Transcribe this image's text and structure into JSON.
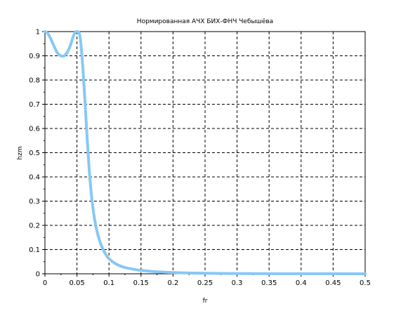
{
  "chart_data": {
    "type": "line",
    "title": "Нормированная АЧХ БИХ-ФНЧ Чебышёва",
    "xlabel": "fr",
    "ylabel": "hzm",
    "xlim": [
      0,
      0.5
    ],
    "ylim": [
      0,
      1
    ],
    "grid": true,
    "x_ticks": [
      "0",
      "0.05",
      "0.1",
      "0.15",
      "0.2",
      "0.25",
      "0.3",
      "0.35",
      "0.4",
      "0.45",
      "0.5"
    ],
    "y_ticks": [
      "0",
      "0.1",
      "0.2",
      "0.3",
      "0.4",
      "0.5",
      "0.6",
      "0.7",
      "0.8",
      "0.9",
      "1"
    ],
    "series": [
      {
        "color": "#87c8f5",
        "x": [
          0,
          0.005,
          0.01,
          0.015,
          0.02,
          0.025,
          0.03,
          0.035,
          0.04,
          0.045,
          0.05,
          0.055,
          0.06,
          0.065,
          0.07,
          0.075,
          0.08,
          0.085,
          0.09,
          0.095,
          0.1,
          0.11,
          0.12,
          0.13,
          0.14,
          0.15,
          0.17,
          0.2,
          0.25,
          0.3,
          0.35,
          0.4,
          0.45,
          0.5
        ],
        "y": [
          1.0,
          0.99,
          0.965,
          0.935,
          0.91,
          0.9,
          0.9,
          0.915,
          0.945,
          0.985,
          1.0,
          0.975,
          0.82,
          0.6,
          0.4,
          0.27,
          0.19,
          0.14,
          0.105,
          0.08,
          0.062,
          0.042,
          0.03,
          0.023,
          0.018,
          0.014,
          0.009,
          0.005,
          0.002,
          0.001,
          0.0005,
          0.0003,
          0.0002,
          0.0001
        ]
      }
    ]
  }
}
